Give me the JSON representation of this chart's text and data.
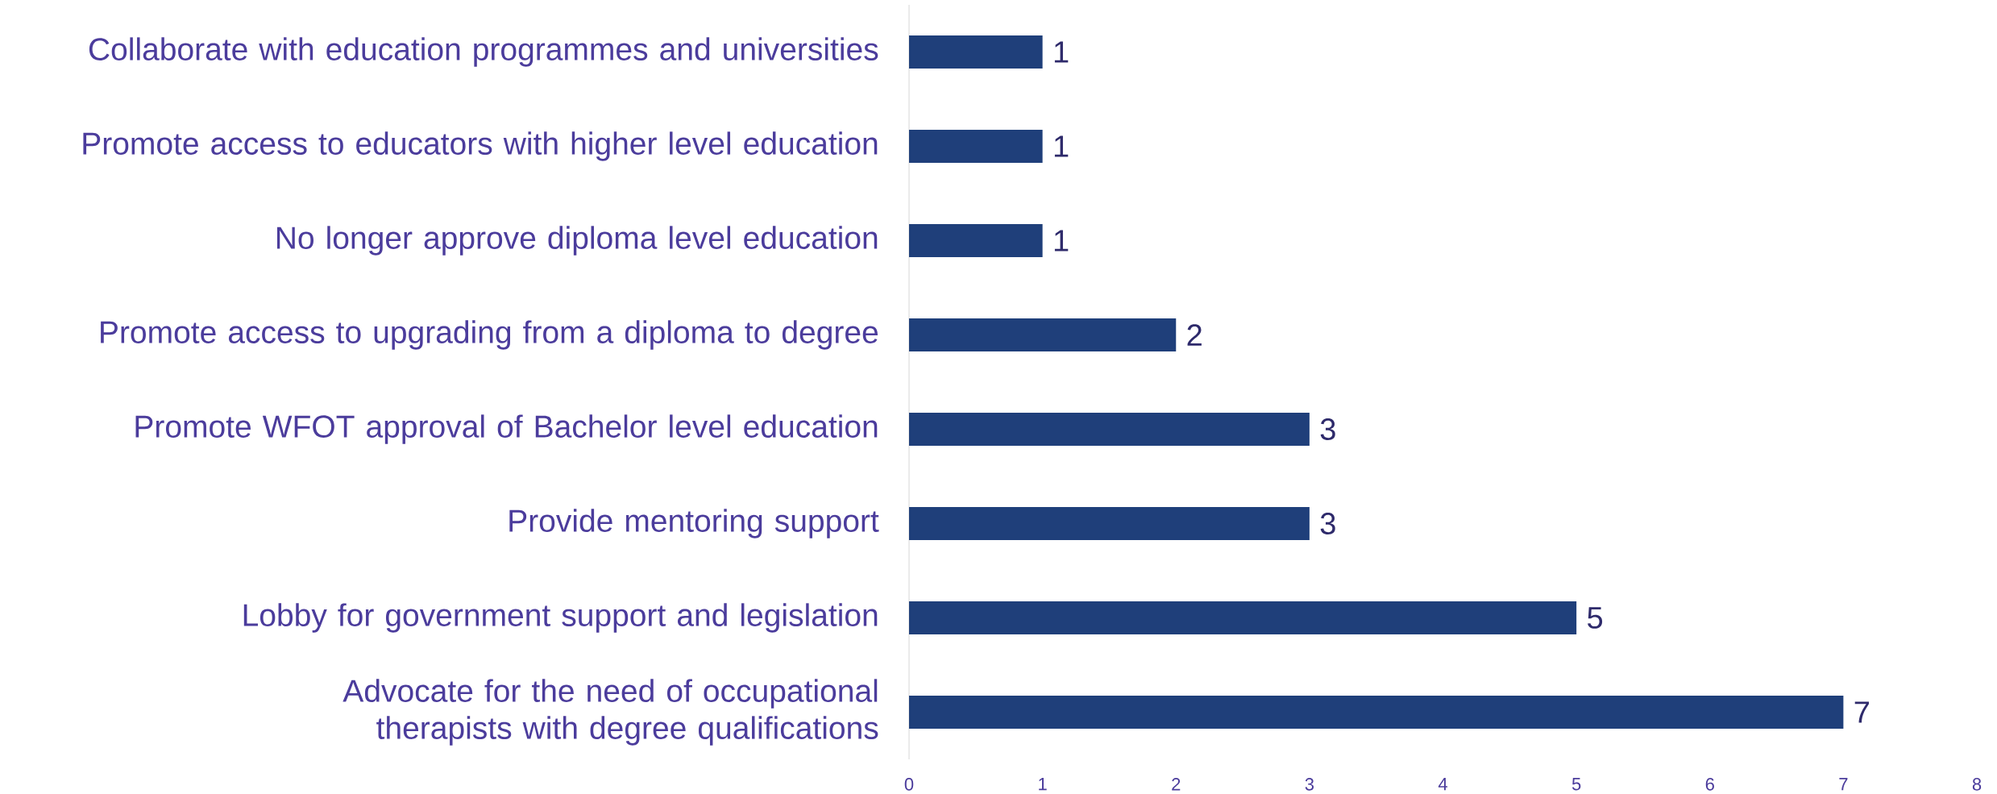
{
  "chart_data": {
    "type": "bar",
    "orientation": "horizontal",
    "categories": [
      "Collaborate with education programmes and universities",
      "Promote access to educators with higher level education",
      "No longer approve diploma level education",
      "Promote access to upgrading from a diploma to degree",
      "Promote WFOT approval of Bachelor level education",
      "Provide mentoring support",
      "Lobby for government support and legislation",
      "Advocate for the need of occupational therapists with degree qualifications"
    ],
    "values": [
      1,
      1,
      1,
      2,
      3,
      3,
      5,
      7
    ],
    "color": "#1f3f7a",
    "xlim": [
      0,
      8
    ],
    "xticks": [
      0,
      1,
      2,
      3,
      4,
      5,
      6,
      7,
      8
    ],
    "data_labels": true,
    "grid": false
  }
}
